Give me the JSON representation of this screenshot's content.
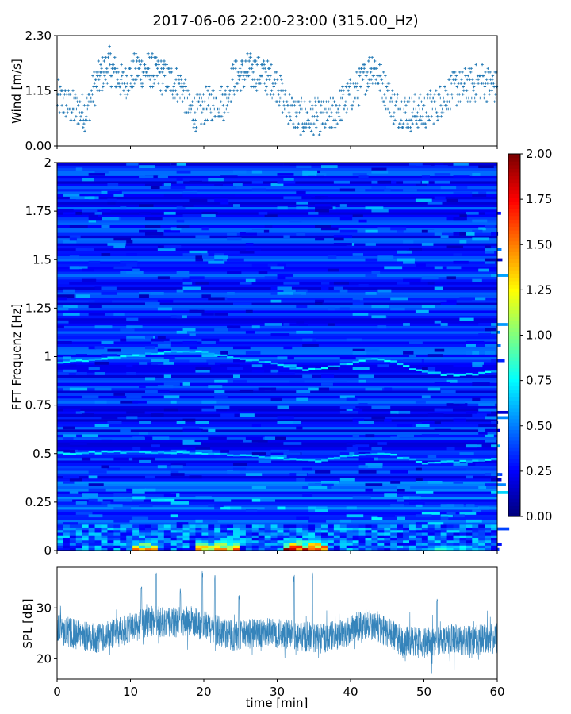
{
  "figure": {
    "title": "2017-06-06 22:00-23:00 (315.00_Hz)"
  },
  "colors": {
    "series": "#1f77b4",
    "jet": [
      "#00007f",
      "#0000ff",
      "#007fff",
      "#00ffff",
      "#7fff7f",
      "#ffff00",
      "#ff7f00",
      "#ff0000",
      "#7f0000"
    ]
  },
  "chart_data": [
    {
      "type": "scatter",
      "name": "wind",
      "ylabel": "Wind [m/s]",
      "xlabel": "",
      "xlim": [
        0,
        60
      ],
      "ylim": [
        0,
        2.3
      ],
      "yticks": [
        0,
        1.15,
        2.3
      ],
      "ytick_labels": [
        "0.00",
        "1.15",
        "2.30"
      ],
      "marker": "+",
      "quantization_step": 0.077,
      "trend": {
        "x": [
          0,
          2,
          4,
          5,
          7,
          9,
          11,
          13,
          15,
          17,
          18,
          19,
          21,
          23,
          24,
          26,
          28,
          30,
          31,
          33,
          35,
          37,
          39,
          41,
          43,
          44,
          46,
          48,
          50,
          52,
          54,
          56,
          58,
          60
        ],
        "y": [
          1.0,
          0.8,
          0.7,
          1.2,
          1.7,
          1.3,
          1.6,
          1.55,
          1.4,
          1.25,
          0.75,
          0.7,
          0.9,
          0.95,
          1.4,
          1.55,
          1.5,
          1.3,
          0.9,
          0.6,
          0.6,
          0.6,
          0.9,
          1.2,
          1.7,
          1.4,
          0.8,
          0.7,
          0.7,
          0.9,
          1.2,
          1.25,
          1.35,
          1.2
        ]
      }
    },
    {
      "type": "heatmap",
      "name": "spectrogram",
      "ylabel": "FFT Frequenz [Hz]",
      "xlabel": "",
      "xlim": [
        0,
        60
      ],
      "ylim": [
        0,
        2
      ],
      "yticks": [
        0,
        0.25,
        0.5,
        0.75,
        1,
        1.25,
        1.5,
        1.75,
        2
      ],
      "ytick_labels": [
        "0",
        "0.25",
        "0.5",
        "0.75",
        "1",
        "1.25",
        "1.5",
        "1.75",
        "2"
      ],
      "colormap": "jet",
      "colorbar": {
        "range": [
          0,
          2
        ],
        "ticks": [
          0,
          0.25,
          0.5,
          0.75,
          1,
          1.25,
          1.5,
          1.75,
          2
        ],
        "tick_labels": [
          "0.00",
          "0.25",
          "0.50",
          "0.75",
          "1.00",
          "1.25",
          "1.50",
          "1.75",
          "2.00"
        ]
      },
      "ridge_lines": [
        {
          "x": [
            0,
            10,
            16,
            20,
            25,
            30,
            34,
            38,
            43,
            46,
            50,
            55,
            60
          ],
          "y": [
            0.97,
            1.0,
            1.03,
            1.02,
            0.99,
            0.96,
            0.93,
            0.95,
            0.99,
            0.97,
            0.92,
            0.9,
            0.93
          ]
        },
        {
          "x": [
            0,
            10,
            20,
            30,
            35,
            40,
            45,
            50,
            55,
            60
          ],
          "y": [
            0.5,
            0.51,
            0.5,
            0.48,
            0.46,
            0.49,
            0.5,
            0.45,
            0.46,
            0.47
          ]
        }
      ],
      "low_freq_hotspots": [
        {
          "x": [
            10,
            14
          ],
          "intensity": 1.5
        },
        {
          "x": [
            19,
            25
          ],
          "intensity": 1.6
        },
        {
          "x": [
            30.5,
            36.5
          ],
          "intensity": 2.0
        },
        {
          "x": [
            51.5,
            56
          ],
          "intensity": 0.9
        }
      ]
    },
    {
      "type": "line",
      "name": "spl",
      "ylabel": "SPL [dB]",
      "xlabel": "time [min]",
      "xlim": [
        0,
        60
      ],
      "ylim": [
        16,
        38
      ],
      "yticks": [
        20,
        30
      ],
      "ytick_labels": [
        "20",
        "30"
      ],
      "xticks": [
        0,
        10,
        20,
        30,
        40,
        50,
        60
      ],
      "xtick_labels": [
        "0",
        "10",
        "20",
        "30",
        "40",
        "50",
        "60"
      ],
      "trend": {
        "x": [
          0,
          2,
          5,
          8,
          11,
          13,
          15,
          18,
          21,
          24,
          27,
          30,
          33,
          36,
          39,
          42,
          44,
          47,
          50,
          53,
          56,
          60
        ],
        "y": [
          26,
          25,
          24,
          25,
          26.5,
          27.5,
          27,
          27.5,
          26,
          24.5,
          25,
          25,
          24.5,
          24,
          25,
          27,
          26,
          23.5,
          23,
          24,
          23.5,
          24
        ]
      },
      "spikes": [
        {
          "x": 11.5,
          "y": 35
        },
        {
          "x": 13.5,
          "y": 37
        },
        {
          "x": 16.8,
          "y": 34
        },
        {
          "x": 19.8,
          "y": 37.5
        },
        {
          "x": 21.5,
          "y": 36.5
        },
        {
          "x": 24.8,
          "y": 33
        },
        {
          "x": 32.3,
          "y": 36.5
        },
        {
          "x": 34.8,
          "y": 37
        },
        {
          "x": 51.8,
          "y": 32
        }
      ]
    }
  ]
}
